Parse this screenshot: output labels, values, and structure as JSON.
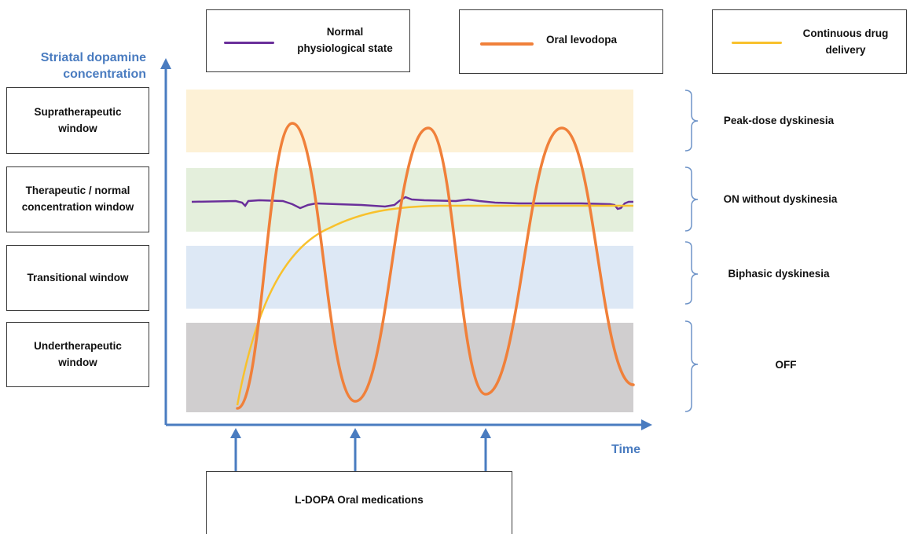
{
  "y_axis_title_line1": "Striatal dopamine",
  "y_axis_title_line2": "concentration",
  "x_axis_title": "Time",
  "legend": [
    {
      "label_line1": "Normal",
      "label_line2": "physiological state",
      "color": "#6a2f9a"
    },
    {
      "label_line1": "Oral levodopa",
      "label_line2": "",
      "color": "#f0803a"
    },
    {
      "label_line1": "Continuous drug",
      "label_line2": "delivery",
      "color": "#f8c12c"
    }
  ],
  "windows": [
    {
      "line1": "Supratherapeutic",
      "line2": "window",
      "color": "#fdf1d6"
    },
    {
      "line1": "Therapeutic / normal",
      "line2": "concentration window",
      "color": "#e4efdc"
    },
    {
      "line1": "Transitional window",
      "line2": "",
      "color": "#dde8f5"
    },
    {
      "line1": "Undertherapeutic",
      "line2": "window",
      "color": "#d0cecf"
    }
  ],
  "clinical_states": [
    "Peak-dose dyskinesia",
    "ON without dyskinesia",
    "Biphasic dyskinesia",
    "OFF"
  ],
  "medication_label": "L-DOPA Oral medications",
  "colors": {
    "axis": "#4a7cc0",
    "bracket": "#6f94c8"
  }
}
